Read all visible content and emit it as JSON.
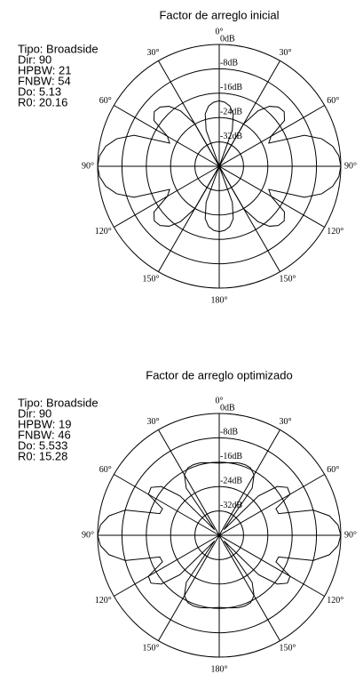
{
  "chart_data": [
    {
      "type": "polar",
      "title": "Factor de arreglo inicial",
      "annotations": [
        "Tipo: Broadside",
        "Dir: 90",
        "HPBW: 21",
        "FNBW: 54",
        "Do: 5.13",
        "R0: 20.16"
      ],
      "rlim": [
        -40,
        0
      ],
      "rticks": [
        {
          "value": 0,
          "label": "0dB"
        },
        {
          "value": -8,
          "label": "-8dB"
        },
        {
          "value": -16,
          "label": "-16dB"
        },
        {
          "value": -24,
          "label": "-24dB"
        },
        {
          "value": -32,
          "label": "-32dB"
        }
      ],
      "thetaticks": [
        {
          "value": 0,
          "label": "0°"
        },
        {
          "value": 30,
          "label": "30°"
        },
        {
          "value": 60,
          "label": "60°"
        },
        {
          "value": 90,
          "label": "90°"
        },
        {
          "value": 120,
          "label": "120°"
        },
        {
          "value": 150,
          "label": "150°"
        },
        {
          "value": 180,
          "label": "180°"
        },
        {
          "value": 210,
          "label": "150°"
        },
        {
          "value": 240,
          "label": "120°"
        },
        {
          "value": 270,
          "label": "90°"
        },
        {
          "value": 300,
          "label": "60°"
        },
        {
          "value": 330,
          "label": "30°"
        }
      ],
      "color": "#000000",
      "x": [
        0,
        5,
        10,
        15,
        20,
        25,
        30,
        35,
        40,
        45,
        50,
        55,
        60,
        65,
        70,
        75,
        80,
        85,
        90,
        95,
        100,
        105,
        110,
        115,
        120,
        125,
        130,
        135,
        140,
        145,
        150,
        155,
        160,
        165,
        170,
        175,
        180,
        185,
        190,
        195,
        200,
        205,
        210,
        215,
        220,
        225,
        230,
        235,
        240,
        245,
        250,
        255,
        260,
        265,
        270,
        275,
        280,
        285,
        290,
        295,
        300,
        305,
        310,
        315,
        320,
        325,
        330,
        335,
        340,
        345,
        350,
        355
      ],
      "values": [
        -18.5,
        -18.9,
        -19.9,
        -22.2,
        -27.4,
        -40,
        -23.9,
        -17.8,
        -14.3,
        -12.5,
        -12.1,
        -13.8,
        -20.3,
        -22,
        -10.2,
        -5.1,
        -2.1,
        -0.5,
        0,
        -0.5,
        -2.1,
        -5.1,
        -10.2,
        -22,
        -20.3,
        -13.8,
        -12.1,
        -12.5,
        -14.3,
        -17.8,
        -23.9,
        -40,
        -27.4,
        -22.2,
        -19.9,
        -18.9,
        -18.5,
        -18.9,
        -19.9,
        -22.2,
        -27.4,
        -40,
        -23.9,
        -17.8,
        -14.3,
        -12.5,
        -12.1,
        -13.8,
        -20.3,
        -22,
        -10.2,
        -5.1,
        -2.1,
        -0.5,
        0,
        -0.5,
        -2.1,
        -5.1,
        -10.2,
        -22,
        -20.3,
        -13.8,
        -12.1,
        -12.5,
        -14.3,
        -17.8,
        -23.9,
        -40,
        -27.4,
        -22.2,
        -19.9,
        -18.9
      ]
    },
    {
      "type": "polar",
      "title": "Factor de arreglo optimizado",
      "annotations": [
        "Tipo: Broadside",
        "Dir: 90",
        "HPBW: 19",
        "FNBW: 46",
        "Do: 5.533",
        "R0: 15.28"
      ],
      "rlim": [
        -40,
        0
      ],
      "rticks": [
        {
          "value": 0,
          "label": "0dB"
        },
        {
          "value": -8,
          "label": "-8dB"
        },
        {
          "value": -16,
          "label": "-16dB"
        },
        {
          "value": -24,
          "label": "-24dB"
        },
        {
          "value": -32,
          "label": "-32dB"
        }
      ],
      "thetaticks": [
        {
          "value": 0,
          "label": "0°"
        },
        {
          "value": 30,
          "label": "30°"
        },
        {
          "value": 60,
          "label": "60°"
        },
        {
          "value": 90,
          "label": "90°"
        },
        {
          "value": 120,
          "label": "120°"
        },
        {
          "value": 150,
          "label": "150°"
        },
        {
          "value": 180,
          "label": "180°"
        },
        {
          "value": 210,
          "label": "150°"
        },
        {
          "value": 240,
          "label": "120°"
        },
        {
          "value": 270,
          "label": "90°"
        },
        {
          "value": 300,
          "label": "60°"
        },
        {
          "value": 330,
          "label": "30°"
        }
      ],
      "color": "#000000",
      "x": [
        0,
        5,
        10,
        15,
        20,
        25,
        30,
        35,
        40,
        45,
        50,
        55,
        60,
        65,
        70,
        75,
        80,
        85,
        90,
        95,
        100,
        105,
        110,
        115,
        120,
        125,
        130,
        135,
        140,
        145,
        150,
        155,
        160,
        165,
        170,
        175,
        180,
        185,
        190,
        195,
        200,
        205,
        210,
        215,
        220,
        225,
        230,
        235,
        240,
        245,
        250,
        255,
        260,
        265,
        270,
        275,
        280,
        285,
        290,
        295,
        300,
        305,
        310,
        315,
        320,
        325,
        330,
        335,
        340,
        345,
        350,
        355
      ],
      "values": [
        -16.3,
        -16.1,
        -15.8,
        -15.4,
        -15.3,
        -15.6,
        -17.1,
        -21.1,
        -37.6,
        -21.7,
        -15.1,
        -12.6,
        -13.1,
        -19.4,
        -19.2,
        -8,
        -3.2,
        -0.8,
        0,
        -0.8,
        -3.2,
        -8,
        -19.2,
        -19.4,
        -13.1,
        -12.6,
        -15.1,
        -21.7,
        -37.6,
        -21.1,
        -17.1,
        -15.6,
        -15.3,
        -15.4,
        -15.8,
        -16.1,
        -16.3,
        -16.1,
        -15.8,
        -15.4,
        -15.3,
        -15.6,
        -17.1,
        -21.1,
        -37.6,
        -21.7,
        -15.1,
        -12.6,
        -13.1,
        -19.4,
        -19.2,
        -8,
        -3.2,
        -0.8,
        0,
        -0.8,
        -3.2,
        -8,
        -19.2,
        -19.4,
        -13.1,
        -12.6,
        -15.1,
        -21.7,
        -37.6,
        -21.1,
        -17.1,
        -15.6,
        -15.3,
        -15.4,
        -15.8,
        -16.1
      ]
    }
  ]
}
